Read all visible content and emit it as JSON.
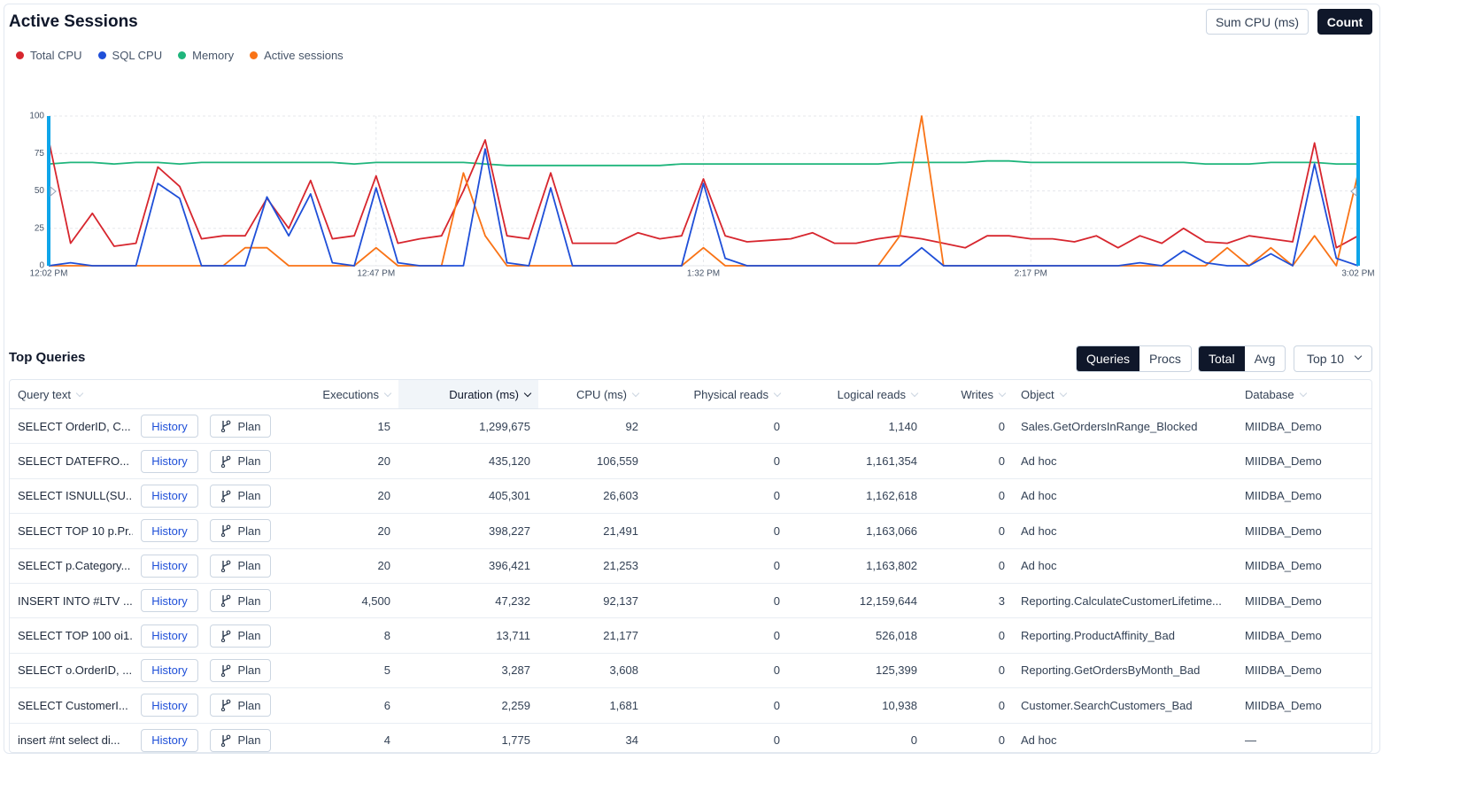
{
  "header": {
    "title": "Active Sessions",
    "buttons": {
      "options": [
        "Sum CPU (ms)",
        "Count"
      ],
      "selected": 1
    }
  },
  "chart_data": {
    "type": "line",
    "categories": [
      "12:02 PM",
      null,
      null,
      null,
      null,
      null,
      null,
      null,
      null,
      null,
      null,
      null,
      null,
      null,
      null,
      "12:47 PM",
      null,
      null,
      null,
      null,
      null,
      null,
      null,
      null,
      null,
      null,
      null,
      null,
      null,
      null,
      "1:32 PM",
      null,
      null,
      null,
      null,
      null,
      null,
      null,
      null,
      null,
      null,
      null,
      null,
      null,
      null,
      "2:17 PM",
      null,
      null,
      null,
      null,
      null,
      null,
      null,
      null,
      null,
      null,
      null,
      null,
      null,
      null,
      "3:02 PM"
    ],
    "ylim": [
      0,
      100
    ],
    "yticks": [
      0,
      25,
      50,
      75,
      100
    ],
    "grid": true,
    "series": [
      {
        "name": "Total CPU",
        "color": "#d7262e",
        "values": [
          84,
          15,
          35,
          13,
          15,
          66,
          53,
          18,
          20,
          20,
          45,
          25,
          57,
          18,
          20,
          60,
          15,
          18,
          20,
          50,
          84,
          20,
          18,
          62,
          15,
          15,
          15,
          22,
          18,
          20,
          58,
          20,
          16,
          17,
          18,
          22,
          15,
          15,
          18,
          20,
          18,
          15,
          12,
          20,
          20,
          18,
          18,
          16,
          20,
          12,
          20,
          15,
          25,
          16,
          15,
          20,
          18,
          16,
          82,
          12,
          20
        ]
      },
      {
        "name": "SQL CPU",
        "color": "#1f4fd8",
        "values": [
          0,
          2,
          0,
          0,
          0,
          55,
          45,
          0,
          0,
          0,
          46,
          20,
          48,
          2,
          0,
          52,
          2,
          0,
          0,
          0,
          78,
          2,
          0,
          52,
          0,
          0,
          0,
          0,
          0,
          0,
          55,
          5,
          0,
          0,
          0,
          0,
          0,
          0,
          0,
          0,
          12,
          0,
          0,
          0,
          0,
          0,
          0,
          0,
          0,
          0,
          2,
          0,
          10,
          2,
          0,
          0,
          8,
          0,
          68,
          5,
          0
        ]
      },
      {
        "name": "Memory",
        "color": "#1fb57c",
        "values": [
          68,
          69,
          69,
          68,
          69,
          69,
          68,
          69,
          69,
          69,
          69,
          69,
          69,
          69,
          68,
          69,
          69,
          69,
          69,
          69,
          68,
          67,
          67,
          67,
          67,
          67,
          67,
          67,
          67,
          68,
          68,
          68,
          68,
          68,
          68,
          68,
          68,
          68,
          68,
          69,
          69,
          69,
          69,
          70,
          70,
          69,
          69,
          69,
          69,
          69,
          69,
          69,
          69,
          68,
          68,
          68,
          69,
          69,
          69,
          68,
          68
        ]
      },
      {
        "name": "Active sessions",
        "color": "#f97316",
        "values": [
          0,
          0,
          0,
          0,
          0,
          0,
          0,
          0,
          0,
          12,
          12,
          0,
          0,
          0,
          0,
          12,
          0,
          0,
          0,
          62,
          20,
          0,
          0,
          0,
          0,
          0,
          0,
          0,
          0,
          0,
          12,
          0,
          0,
          0,
          0,
          0,
          0,
          0,
          0,
          20,
          100,
          0,
          0,
          0,
          0,
          0,
          0,
          0,
          0,
          0,
          0,
          0,
          0,
          0,
          12,
          0,
          12,
          0,
          20,
          0,
          62
        ]
      }
    ]
  },
  "top_queries": {
    "title": "Top Queries",
    "view_toggle": {
      "options": [
        "Queries",
        "Procs"
      ],
      "selected": 0
    },
    "mode_toggle": {
      "options": [
        "Total",
        "Avg"
      ],
      "selected": 0
    },
    "limit": "Top 10",
    "columns": [
      "Query text",
      "Executions",
      "Duration (ms)",
      "CPU (ms)",
      "Physical reads",
      "Logical reads",
      "Writes",
      "Object",
      "Database"
    ],
    "sort": {
      "column": 2,
      "order": "desc"
    },
    "row_actions": [
      "History",
      "Plan"
    ],
    "rows": [
      [
        "SELECT OrderID, C...",
        "15",
        "1,299,675",
        "92",
        "0",
        "1,140",
        "0",
        "Sales.GetOrdersInRange_Blocked",
        "MIIDBA_Demo"
      ],
      [
        "SELECT DATEFRO...",
        "20",
        "435,120",
        "106,559",
        "0",
        "1,161,354",
        "0",
        "Ad hoc",
        "MIIDBA_Demo"
      ],
      [
        "SELECT ISNULL(SU...",
        "20",
        "405,301",
        "26,603",
        "0",
        "1,162,618",
        "0",
        "Ad hoc",
        "MIIDBA_Demo"
      ],
      [
        "SELECT TOP 10 p.Pr...",
        "20",
        "398,227",
        "21,491",
        "0",
        "1,163,066",
        "0",
        "Ad hoc",
        "MIIDBA_Demo"
      ],
      [
        "SELECT p.Category...",
        "20",
        "396,421",
        "21,253",
        "0",
        "1,163,802",
        "0",
        "Ad hoc",
        "MIIDBA_Demo"
      ],
      [
        "INSERT INTO #LTV ...",
        "4,500",
        "47,232",
        "92,137",
        "0",
        "12,159,644",
        "3",
        "Reporting.CalculateCustomerLifetime...",
        "MIIDBA_Demo"
      ],
      [
        "SELECT TOP 100 oi1...",
        "8",
        "13,711",
        "21,177",
        "0",
        "526,018",
        "0",
        "Reporting.ProductAffinity_Bad",
        "MIIDBA_Demo"
      ],
      [
        "SELECT o.OrderID, ...",
        "5",
        "3,287",
        "3,608",
        "0",
        "125,399",
        "0",
        "Reporting.GetOrdersByMonth_Bad",
        "MIIDBA_Demo"
      ],
      [
        "SELECT CustomerI...",
        "6",
        "2,259",
        "1,681",
        "0",
        "10,938",
        "0",
        "Customer.SearchCustomers_Bad",
        "MIIDBA_Demo"
      ],
      [
        "insert #nt select di...",
        "4",
        "1,775",
        "34",
        "0",
        "0",
        "0",
        "Ad hoc",
        "—"
      ]
    ]
  }
}
